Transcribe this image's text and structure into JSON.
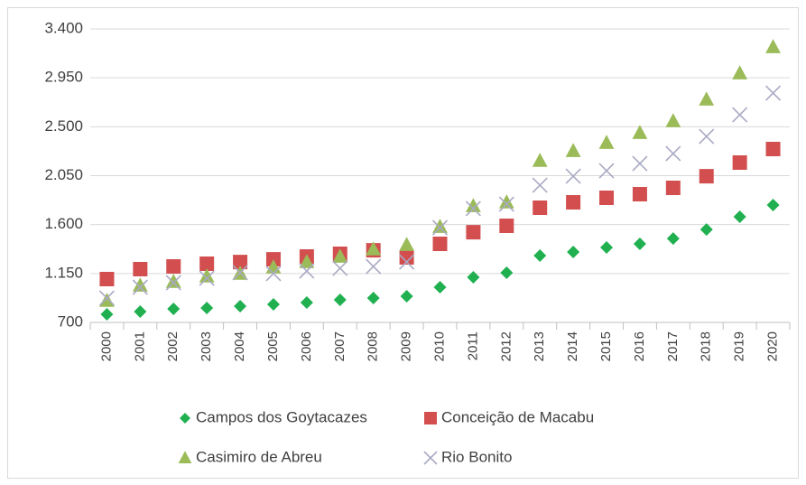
{
  "chart_data": {
    "type": "scatter",
    "categories": [
      "2000",
      "2001",
      "2002",
      "2003",
      "2004",
      "2005",
      "2006",
      "2007",
      "2008",
      "2009",
      "2010",
      "2011",
      "2012",
      "2013",
      "2014",
      "2015",
      "2016",
      "2017",
      "2018",
      "2019",
      "2020"
    ],
    "ylim": [
      700,
      3400
    ],
    "yticks": [
      {
        "value": 700,
        "label": "700"
      },
      {
        "value": 1150,
        "label": "1.150"
      },
      {
        "value": 1600,
        "label": "1.600"
      },
      {
        "value": 2050,
        "label": "2.050"
      },
      {
        "value": 2500,
        "label": "2.500"
      },
      {
        "value": 2950,
        "label": "2.950"
      },
      {
        "value": 3400,
        "label": "3.400"
      }
    ],
    "grid": true,
    "legend": "bottom",
    "series": [
      {
        "name": "Campos dos Goytacazes",
        "color": "#20b050",
        "marker": "diamond",
        "values": [
          775,
          800,
          825,
          833,
          850,
          866,
          883,
          908,
          924,
          941,
          1024,
          1115,
          1157,
          1315,
          1348,
          1390,
          1423,
          1472,
          1555,
          1672,
          1780
        ]
      },
      {
        "name": "Conceição de Macabu",
        "color": "#d34f4f",
        "marker": "square",
        "values": [
          1099,
          1190,
          1215,
          1240,
          1256,
          1281,
          1306,
          1331,
          1364,
          1298,
          1423,
          1530,
          1589,
          1755,
          1805,
          1846,
          1880,
          1938,
          2045,
          2170,
          2295
        ]
      },
      {
        "name": "Casimiro de Abreu",
        "color": "#9bbb59",
        "marker": "triangle",
        "values": [
          900,
          1040,
          1074,
          1124,
          1149,
          1207,
          1256,
          1306,
          1373,
          1414,
          1580,
          1771,
          1805,
          2187,
          2278,
          2353,
          2444,
          2552,
          2751,
          2992,
          3233
        ]
      },
      {
        "name": "Rio Bonito",
        "color": "#a9a9c4",
        "marker": "x",
        "values": [
          924,
          1024,
          1065,
          1107,
          1157,
          1149,
          1173,
          1198,
          1215,
          1256,
          1572,
          1747,
          1788,
          1962,
          2045,
          2095,
          2162,
          2253,
          2411,
          2610,
          2810
        ]
      }
    ]
  }
}
